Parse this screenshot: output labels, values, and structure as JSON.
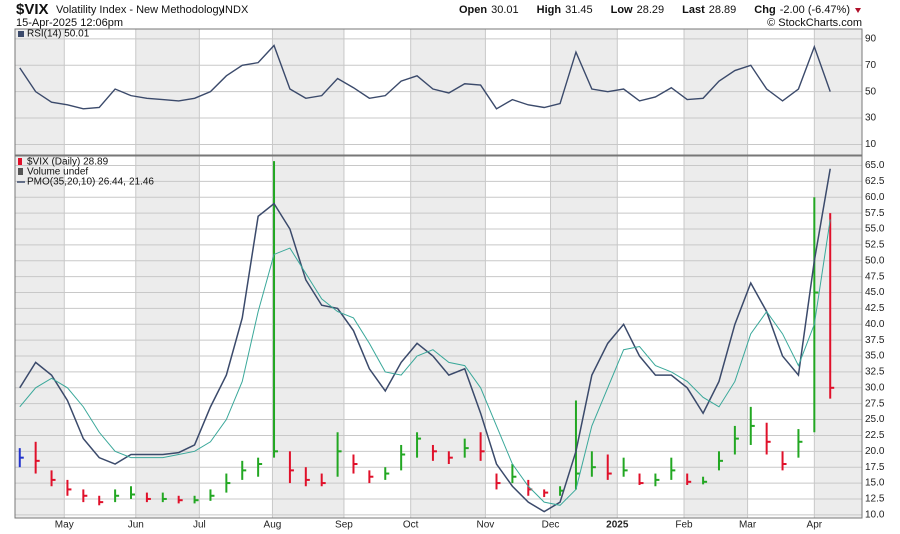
{
  "header": {
    "symbol": "$VIX",
    "name": "Volatility Index - New Methodology",
    "exchange": "INDX",
    "date": "15-Apr-2025 12:06pm",
    "quote": [
      {
        "label": "Open",
        "value": "30.01"
      },
      {
        "label": "High",
        "value": "31.45"
      },
      {
        "label": "Low",
        "value": "28.29"
      },
      {
        "label": "Last",
        "value": "28.89"
      },
      {
        "label": "Chg",
        "value": "-2.00 (-6.47%)"
      }
    ],
    "watermark": "© StockCharts.com"
  },
  "chart_data": [
    {
      "type": "line",
      "ylim": [
        2,
        97.5
      ],
      "yticks": [
        10,
        30,
        50,
        70,
        90
      ],
      "grid": true,
      "series": [
        {
          "name": "RSI(14) 50.01",
          "color": "#3b4a6b",
          "values": [
            68,
            50,
            42,
            40,
            37,
            38,
            52,
            47,
            45,
            44,
            43,
            45,
            50,
            62,
            70,
            72,
            85,
            52,
            45,
            47,
            60,
            53,
            45,
            47,
            58,
            62,
            52,
            49,
            56,
            55,
            37,
            44,
            40,
            38,
            41,
            80,
            52,
            50,
            52,
            43,
            46,
            53,
            44,
            45,
            58,
            66,
            70,
            52,
            43,
            52,
            84,
            50
          ]
        }
      ]
    },
    {
      "type": "ohlc",
      "xlim": [
        -0.3,
        53
      ],
      "ylim": [
        9.5,
        66.5
      ],
      "grid": true,
      "up_color": "#22a722",
      "down_color": "#e0102a",
      "volume_label": "Volume undef",
      "xticks": [
        {
          "value": 2.8,
          "label": "May"
        },
        {
          "value": 7.3,
          "label": "Jun"
        },
        {
          "value": 11.3,
          "label": "Jul"
        },
        {
          "value": 15.9,
          "label": "Aug"
        },
        {
          "value": 20.4,
          "label": "Sep"
        },
        {
          "value": 24.6,
          "label": "Oct"
        },
        {
          "value": 29.3,
          "label": "Nov"
        },
        {
          "value": 33.4,
          "label": "Dec"
        },
        {
          "value": 37.6,
          "label": "2025"
        },
        {
          "value": 41.8,
          "label": "Feb"
        },
        {
          "value": 45.8,
          "label": "Mar"
        },
        {
          "value": 50,
          "label": "Apr"
        }
      ],
      "yticks": [
        {
          "value": 10,
          "label": "10.0"
        },
        {
          "value": 12.5,
          "label": "12.5"
        },
        {
          "value": 15,
          "label": "15.0"
        },
        {
          "value": 17.5,
          "label": "17.5"
        },
        {
          "value": 20,
          "label": "20.0"
        },
        {
          "value": 22.5,
          "label": "22.5"
        },
        {
          "value": 25,
          "label": "25.0"
        },
        {
          "value": 27.5,
          "label": "27.5"
        },
        {
          "value": 30,
          "label": "30.0"
        },
        {
          "value": 32.5,
          "label": "32.5"
        },
        {
          "value": 35,
          "label": "35.0"
        },
        {
          "value": 37.5,
          "label": "37.5"
        },
        {
          "value": 40,
          "label": "40.0"
        },
        {
          "value": 42.5,
          "label": "42.5"
        },
        {
          "value": 45,
          "label": "45.0"
        },
        {
          "value": 47.5,
          "label": "47.5"
        },
        {
          "value": 50,
          "label": "50.0"
        },
        {
          "value": 52.5,
          "label": "52.5"
        },
        {
          "value": 55,
          "label": "55.0"
        },
        {
          "value": 57.5,
          "label": "57.5"
        },
        {
          "value": 60,
          "label": "60.0"
        },
        {
          "value": 62.5,
          "label": "62.5"
        },
        {
          "value": 65,
          "label": "65.0"
        }
      ],
      "series": [
        {
          "name": "$VIX (Daily) 28.89",
          "color": "#2233cc",
          "high": [
            20.5,
            21.5,
            17,
            15.5,
            14,
            13,
            14,
            14.5,
            13.5,
            13.5,
            13,
            13,
            14,
            16.5,
            18.5,
            19,
            65.7,
            20,
            17.5,
            16.5,
            23,
            19.5,
            17,
            17.5,
            21,
            23,
            21,
            20,
            22,
            23,
            16.5,
            18,
            15.5,
            14,
            14.5,
            28,
            20,
            19.5,
            19,
            16.5,
            16.5,
            19,
            16.5,
            16,
            20,
            24,
            27,
            24.5,
            20,
            23.5,
            60,
            57.5
          ],
          "low": [
            17.5,
            16.5,
            14.5,
            13,
            12,
            11.5,
            12,
            12.5,
            12,
            12,
            11.8,
            11.8,
            12.2,
            13.5,
            15.5,
            16,
            19,
            15,
            14.5,
            14.5,
            16,
            16.5,
            15,
            15.5,
            17,
            19,
            18.5,
            18,
            19,
            18.5,
            14,
            15,
            13,
            12.8,
            13,
            14,
            16,
            15.5,
            16,
            14.7,
            14.5,
            15.5,
            14.7,
            14.8,
            17,
            19.5,
            21,
            19.5,
            17,
            19,
            23,
            28.3
          ],
          "close": [
            19,
            18.5,
            15.5,
            14,
            13,
            12,
            13,
            13.2,
            12.5,
            12.5,
            12.3,
            12.3,
            13,
            15,
            17,
            18,
            20,
            17,
            15.5,
            15,
            20,
            18,
            16,
            16.5,
            19.5,
            22,
            20,
            19,
            20.5,
            20,
            15,
            16,
            14,
            13.5,
            13.8,
            16.5,
            17.5,
            16.5,
            17,
            15,
            15.5,
            17,
            15.2,
            15.2,
            18.5,
            22,
            24,
            21.5,
            18,
            21.5,
            45,
            30
          ]
        },
        {
          "name": "PMO(35,20,10) 26.44,",
          "color": "#3b4a6b",
          "values": [
            30,
            34,
            32,
            28,
            22,
            19,
            18,
            19.5,
            19.5,
            19.5,
            19.8,
            21,
            27,
            32,
            41,
            57,
            59,
            55,
            47,
            43,
            42.5,
            39,
            33,
            29.5,
            34,
            37,
            35,
            32,
            33,
            26,
            18,
            14.5,
            12,
            10.5,
            12,
            20,
            32,
            37,
            40,
            35,
            32,
            32,
            30,
            26,
            31,
            40,
            46.5,
            42,
            35,
            32,
            50,
            64.5
          ]
        },
        {
          "name": "21.46",
          "color": "#3aa89a",
          "values": [
            27,
            30,
            31.5,
            30,
            27,
            23,
            20,
            19,
            19,
            19,
            19.5,
            20,
            21.5,
            25,
            31,
            42,
            51,
            52,
            48,
            44,
            42,
            41,
            37,
            32.5,
            32,
            35,
            36,
            34,
            33.5,
            30,
            24,
            18,
            14.5,
            12,
            11.5,
            14,
            24,
            30,
            36,
            36.5,
            33.5,
            32.5,
            31,
            28.5,
            27,
            31,
            38.5,
            42,
            38.5,
            33.5,
            40,
            56.5
          ]
        }
      ]
    }
  ]
}
